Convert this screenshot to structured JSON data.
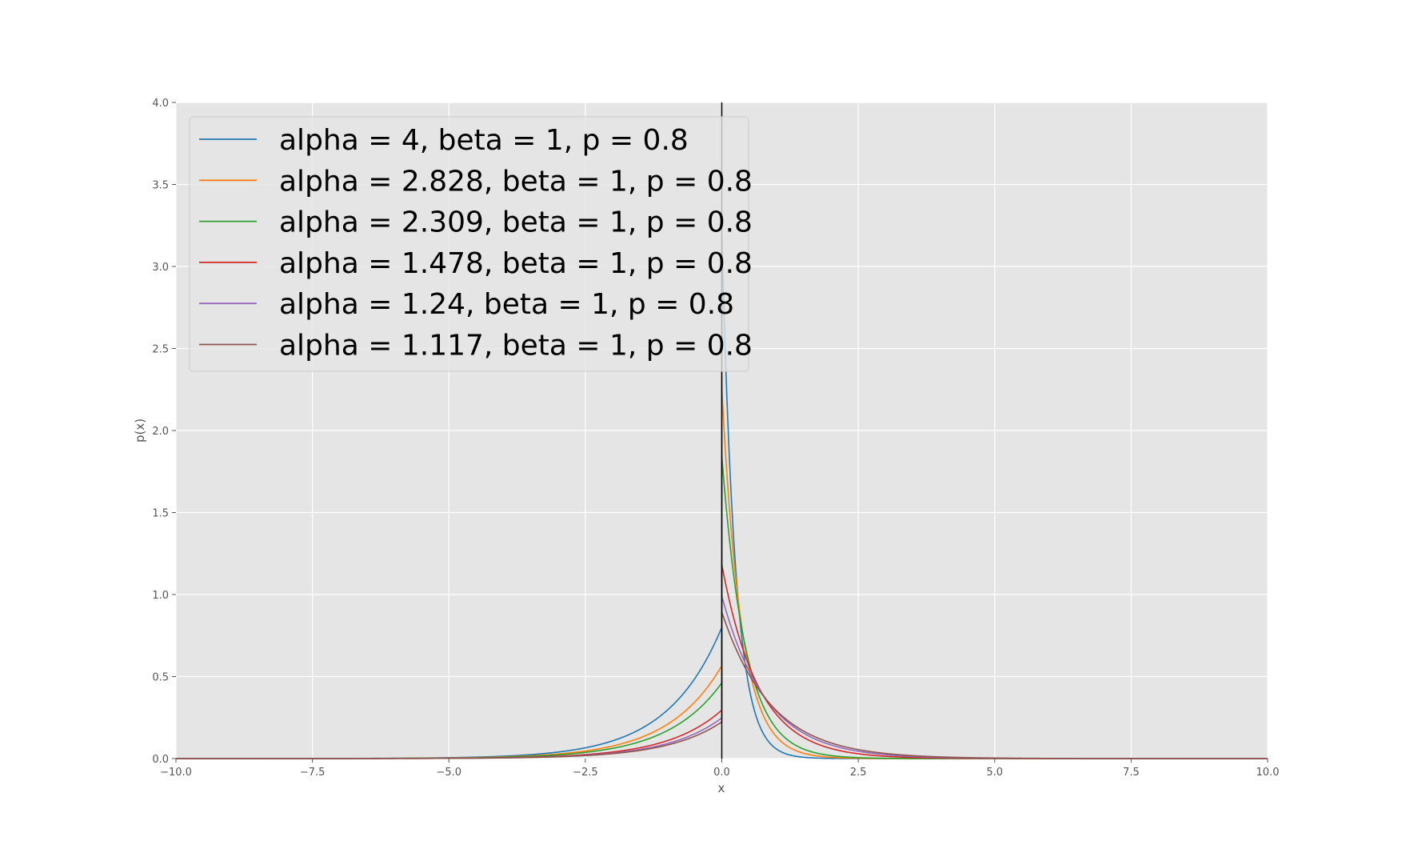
{
  "chart_data": {
    "type": "line",
    "title": "",
    "xlabel": "x",
    "ylabel": "p(x)",
    "xlim": [
      -10,
      10
    ],
    "ylim": [
      0,
      4
    ],
    "xticks": [
      -10,
      -7.5,
      -5,
      -2.5,
      0,
      2.5,
      5,
      7.5,
      10
    ],
    "xtick_labels": [
      "−10.0",
      "−7.5",
      "−5.0",
      "−2.5",
      "0.0",
      "2.5",
      "5.0",
      "7.5",
      "10.0"
    ],
    "yticks": [
      0,
      0.5,
      1,
      1.5,
      2,
      2.5,
      3,
      3.5,
      4
    ],
    "ytick_labels": [
      "0.0",
      "0.5",
      "1.0",
      "1.5",
      "2.0",
      "2.5",
      "3.0",
      "3.5",
      "4.0"
    ],
    "grid": true,
    "legend_position": "top-left",
    "background_color": "#e5e5e5",
    "vertical_line": {
      "x": 0,
      "color": "#000000"
    },
    "series": [
      {
        "name": "alpha = 4, beta = 1, p = 0.8",
        "color": "#1f77b4",
        "alpha": 4,
        "beta": 1,
        "p": 0.8
      },
      {
        "name": "alpha = 2.828, beta = 1, p = 0.8",
        "color": "#ff7f0e",
        "alpha": 2.828,
        "beta": 1,
        "p": 0.8
      },
      {
        "name": "alpha = 2.309, beta = 1, p = 0.8",
        "color": "#2ca02c",
        "alpha": 2.309,
        "beta": 1,
        "p": 0.8
      },
      {
        "name": "alpha = 1.478, beta = 1, p = 0.8",
        "color": "#d62728",
        "alpha": 1.478,
        "beta": 1,
        "p": 0.8
      },
      {
        "name": "alpha = 1.24, beta = 1, p = 0.8",
        "color": "#9467bd",
        "alpha": 1.24,
        "beta": 1,
        "p": 0.8
      },
      {
        "name": "alpha = 1.117, beta = 1, p = 0.8",
        "color": "#8c564b",
        "alpha": 1.117,
        "beta": 1,
        "p": 0.8
      }
    ]
  }
}
